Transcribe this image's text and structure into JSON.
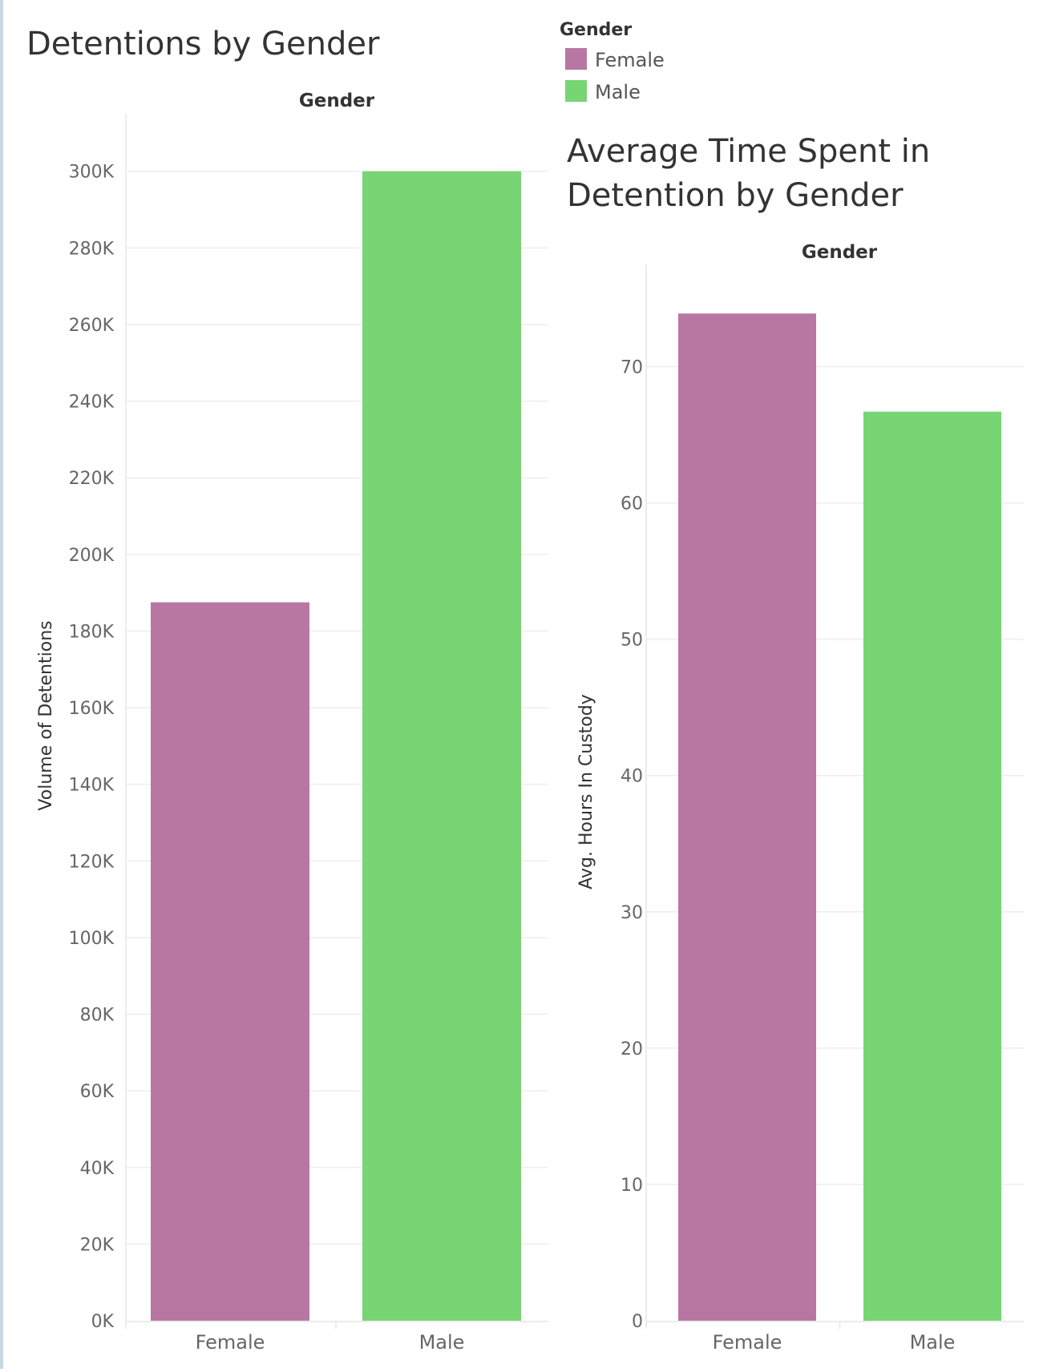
{
  "legend": {
    "title": "Gender",
    "items": [
      {
        "label": "Female",
        "color": "#b877a2"
      },
      {
        "label": "Male",
        "color": "#77d573"
      }
    ]
  },
  "chart_data": [
    {
      "type": "bar",
      "title": "Detentions by Gender",
      "header": "Gender",
      "ylabel": "Volume of Detentions",
      "categories": [
        "Female",
        "Male"
      ],
      "values": [
        187500,
        300000
      ],
      "colors": [
        "#b877a2",
        "#77d573"
      ],
      "ylim": [
        0,
        315000
      ],
      "yticks": [
        0,
        20000,
        40000,
        60000,
        80000,
        100000,
        120000,
        140000,
        160000,
        180000,
        200000,
        220000,
        240000,
        260000,
        280000,
        300000
      ],
      "ytick_labels": [
        "0K",
        "20K",
        "40K",
        "60K",
        "80K",
        "100K",
        "120K",
        "140K",
        "160K",
        "180K",
        "200K",
        "220K",
        "240K",
        "260K",
        "280K",
        "300K"
      ],
      "grid": true,
      "legend": "top-right"
    },
    {
      "type": "bar",
      "title": [
        "Average Time Spent in",
        "Detention by Gender"
      ],
      "header": "Gender",
      "ylabel": "Avg. Hours In Custody",
      "categories": [
        "Female",
        "Male"
      ],
      "values": [
        73.9,
        66.7
      ],
      "colors": [
        "#b877a2",
        "#77d573"
      ],
      "ylim": [
        0,
        77.5
      ],
      "yticks": [
        0,
        10,
        20,
        30,
        40,
        50,
        60,
        70
      ],
      "ytick_labels": [
        "0",
        "10",
        "20",
        "30",
        "40",
        "50",
        "60",
        "70"
      ],
      "grid": true
    }
  ]
}
